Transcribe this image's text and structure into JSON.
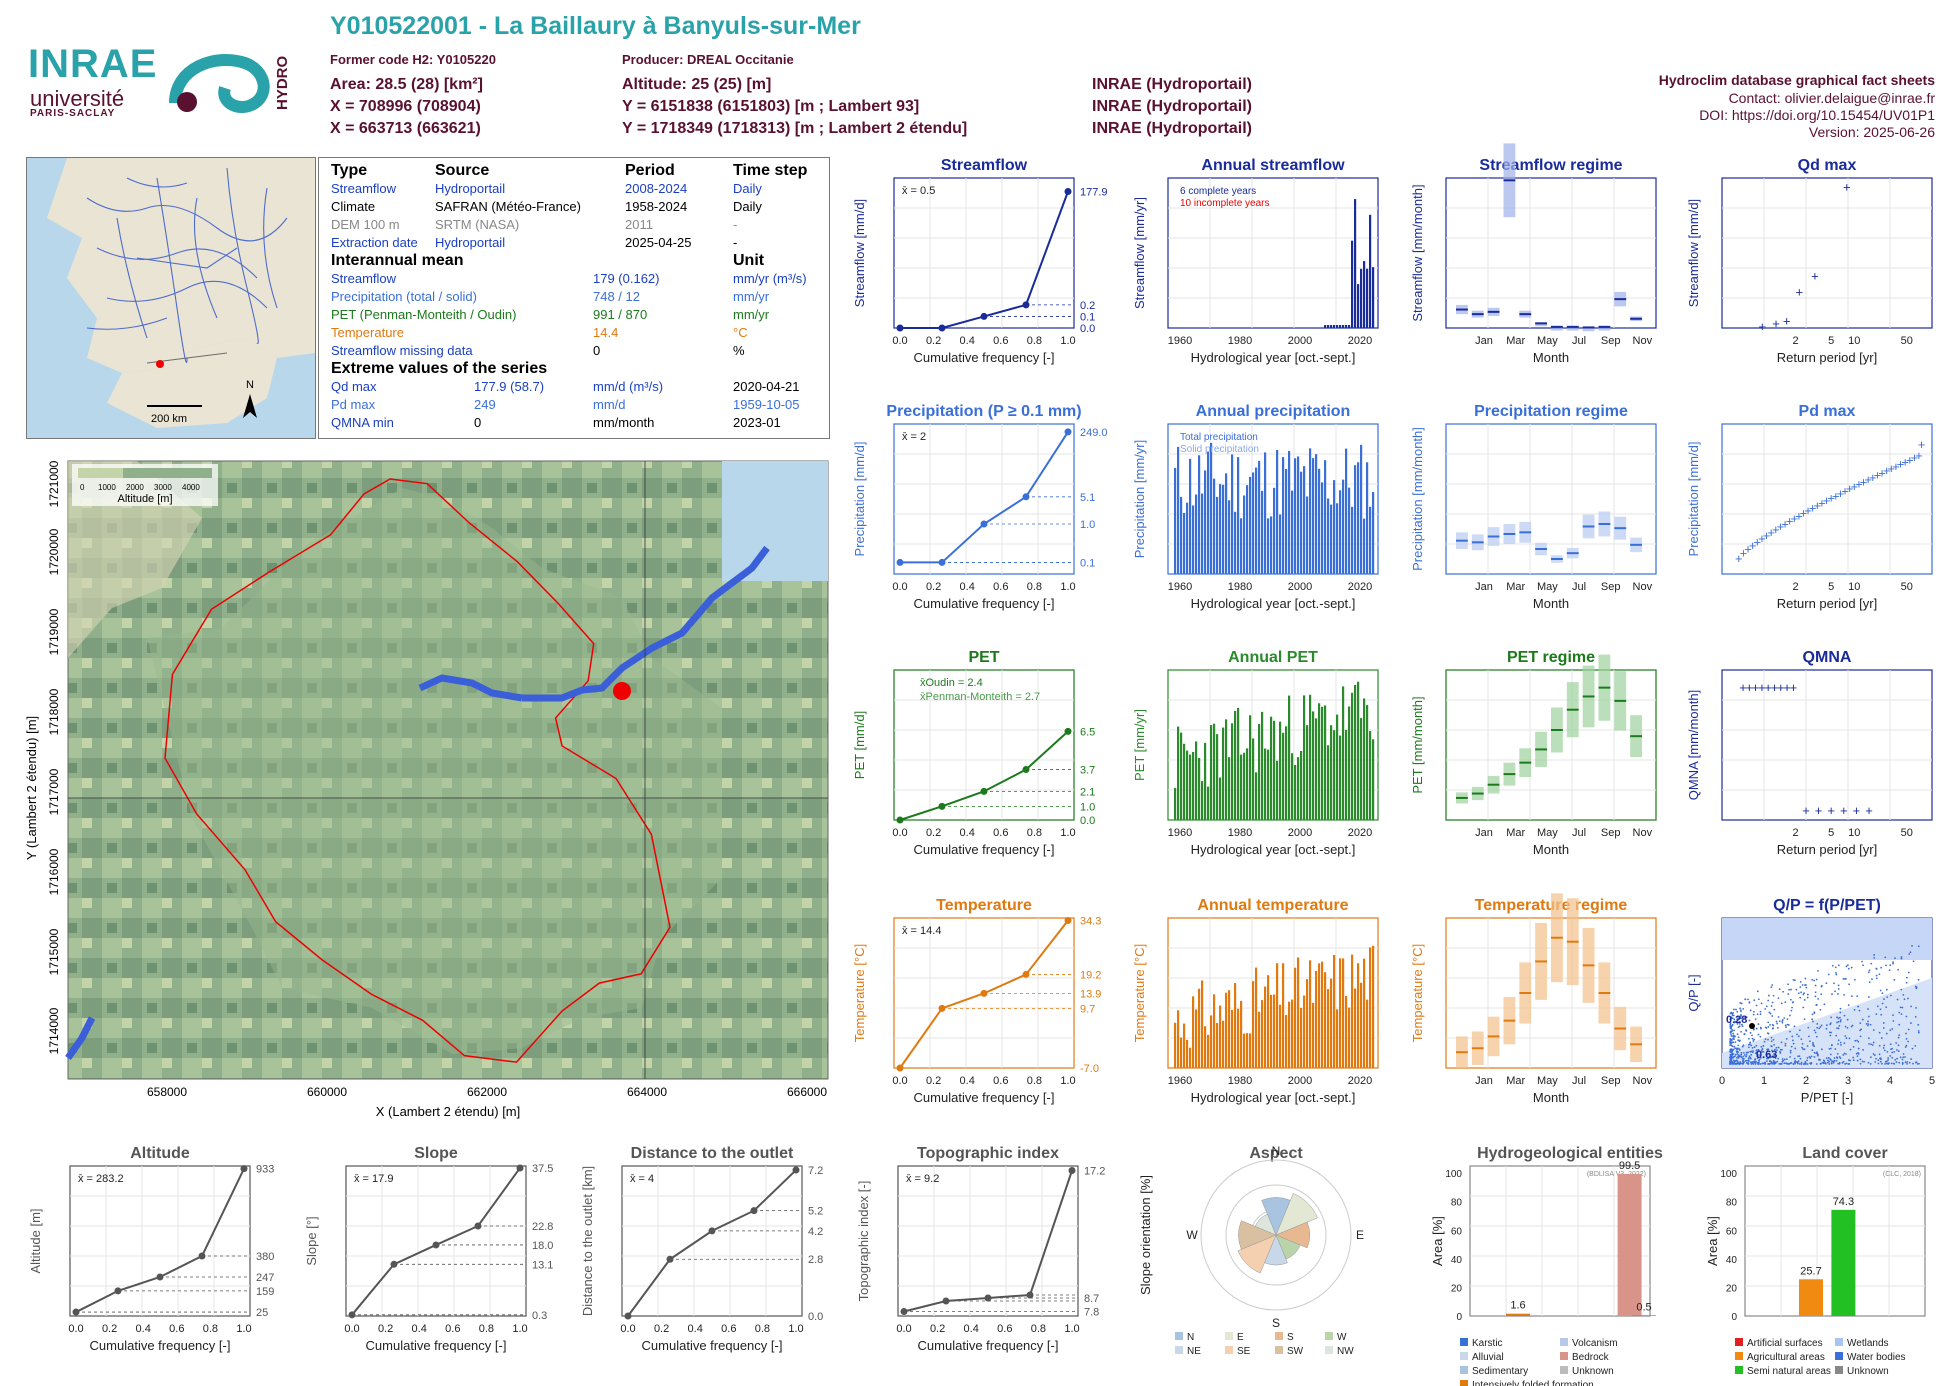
{
  "header": {
    "title": "Y010522001 - La Baillaury à Banyuls-sur-Mer",
    "former_code": "Former code H2: Y0105220",
    "producer": "Producer: DREAL Occitanie",
    "area": "Area: 28.5 (28) [km²]",
    "altitude": "Altitude: 25 (25) [m]",
    "x_l93": "X = 708996 (708904)",
    "y_l93": "Y = 6151838 (6151803) [m ; Lambert 93]",
    "src1": "INRAE (Hydroportail)",
    "x_l2": "X = 663713 (663621)",
    "y_l2": "Y = 1718349 (1718313) [m ; Lambert 2 étendu]",
    "src2": "INRAE (Hydroportail)",
    "src0": "INRAE (Hydroportail)",
    "right": {
      "db": "Hydroclim database graphical fact sheets",
      "contact": "Contact: olivier.delaigue@inrae.fr",
      "doi": "DOI: https://doi.org/10.15454/UV01P1",
      "version": "Version: 2025-06-26"
    }
  },
  "logos": {
    "inrae": "INRAE",
    "univ": "université",
    "ps": "PARIS-SACLAY",
    "hydro": "HYDRO"
  },
  "minimap": {
    "north": "N",
    "scale": "200 km"
  },
  "info": {
    "cols": {
      "type": "Type",
      "source": "Source",
      "period": "Period",
      "timestep": "Time step"
    },
    "rows": [
      {
        "type": "Streamflow",
        "source": "Hydroportail",
        "period": "2008-2024",
        "timestep": "Daily"
      },
      {
        "type": "Climate",
        "source": "SAFRAN (Météo-France)",
        "period": "1958-2024",
        "timestep": "Daily"
      },
      {
        "type": "DEM 100 m",
        "source": "SRTM (NASA)",
        "period": "2011",
        "timestep": "-"
      },
      {
        "type": "Extraction date",
        "source": "Hydroportail",
        "period": "2025-04-25",
        "timestep": "-"
      }
    ],
    "inter_title": "Interannual mean",
    "unit_title": "Unit",
    "inter": [
      {
        "label": "Streamflow",
        "value": "179 (0.162)",
        "unit": "mm/yr (m³/s)"
      },
      {
        "label": "Precipitation (total / solid)",
        "value": "748 / 12",
        "unit": "mm/yr"
      },
      {
        "label": "PET (Penman-Monteith / Oudin)",
        "value": "991 / 870",
        "unit": "mm/yr"
      },
      {
        "label": "Temperature",
        "value": "14.4",
        "unit": "°C"
      },
      {
        "label": "Streamflow missing data",
        "value": "0",
        "unit": "%"
      }
    ],
    "extreme_title": "Extreme values of the series",
    "extreme": [
      {
        "label": "Qd max",
        "value": "177.9 (58.7)",
        "unit": "mm/d (m³/s)",
        "date": "2020-04-21"
      },
      {
        "label": "Pd max",
        "value": "249",
        "unit": "mm/d",
        "date": "1959-10-05"
      },
      {
        "label": "QMNA min",
        "value": "0",
        "unit": "mm/month",
        "date": "2023-01"
      }
    ]
  },
  "bigmap": {
    "legend_title": "Altitude [m]",
    "legend_ticks": [
      "0",
      "1000",
      "2000",
      "3000",
      "4000"
    ],
    "xlabel": "X (Lambert 2 étendu) [m]",
    "ylabel": "Y (Lambert 2 étendu) [m]",
    "xticks": [
      "658000",
      "660000",
      "662000",
      "664000",
      "666000"
    ],
    "yticks": [
      "1714000",
      "1715000",
      "1716000",
      "1717000",
      "1718000",
      "1719000",
      "1720000",
      "1721000"
    ]
  },
  "panels": {
    "streamflow": {
      "title": "Streamflow",
      "ylabel": "Streamflow [mm/d]",
      "xlabel": "Cumulative frequency [-]",
      "mean": "x̄ = 0.5",
      "rvals": [
        "177.9",
        "0.2",
        "0.1",
        "0.0"
      ]
    },
    "ann_streamflow": {
      "title": "Annual streamflow",
      "ylabel": "Streamflow [mm/yr]",
      "xlabel": "Hydrological year [oct.-sept.]",
      "leg1": "6 complete years",
      "leg2": "10 incomplete years"
    },
    "q_regime": {
      "title": "Streamflow regime",
      "ylabel": "Streamflow [mm/month]",
      "xlabel": "Month"
    },
    "qdmax": {
      "title": "Qd max",
      "ylabel": "Streamflow [mm/d]",
      "xlabel": "Return period [yr]"
    },
    "precip": {
      "title": "Precipitation (P ≥ 0.1 mm)",
      "ylabel": "Precipitation [mm/d]",
      "xlabel": "Cumulative frequency [-]",
      "mean": "x̄ = 2",
      "rvals": [
        "249.0",
        "5.1",
        "1.0",
        "0.1"
      ]
    },
    "ann_precip": {
      "title": "Annual precipitation",
      "ylabel": "Precipitation [mm/yr]",
      "xlabel": "Hydrological year [oct.-sept.]",
      "leg1": "Total precipitation",
      "leg2": "Solid precipitation"
    },
    "p_regime": {
      "title": "Precipitation regime",
      "ylabel": "Precipitation [mm/month]",
      "xlabel": "Month"
    },
    "pdmax": {
      "title": "Pd max",
      "ylabel": "Precipitation [mm/d]",
      "xlabel": "Return period [yr]"
    },
    "pet": {
      "title": "PET",
      "ylabel": "PET [mm/d]",
      "xlabel": "Cumulative frequency [-]",
      "leg1": "x̄Oudin = 2.4",
      "leg2": "x̄Penman-Monteith = 2.7",
      "rvals": [
        "6.5",
        "3.7",
        "2.1",
        "1.0",
        "0.0"
      ]
    },
    "ann_pet": {
      "title": "Annual PET",
      "ylabel": "PET [mm/yr]",
      "xlabel": "Hydrological year [oct.-sept.]"
    },
    "pet_regime": {
      "title": "PET regime",
      "ylabel": "PET [mm/month]",
      "xlabel": "Month"
    },
    "qmna": {
      "title": "QMNA",
      "ylabel": "QMNA [mm/month]",
      "xlabel": "Return period [yr]"
    },
    "temp": {
      "title": "Temperature",
      "ylabel": "Temperature [°C]",
      "xlabel": "Cumulative frequency [-]",
      "mean": "x̄ = 14.4",
      "rvals": [
        "34.3",
        "19.2",
        "13.9",
        "9.7",
        "-7.0"
      ]
    },
    "ann_temp": {
      "title": "Annual temperature",
      "ylabel": "Temperature [°C]",
      "xlabel": "Hydrological year [oct.-sept.]"
    },
    "t_regime": {
      "title": "Temperature regime",
      "ylabel": "Temperature [°C]",
      "xlabel": "Month"
    },
    "qp": {
      "title": "Q/P = f(P/PET)",
      "ylabel": "Q/P [-]",
      "xlabel": "P/PET [-]",
      "v1": "0.28",
      "v2": "0.63"
    },
    "altitude": {
      "title": "Altitude",
      "ylabel": "Altitude [m]",
      "xlabel": "Cumulative frequency [-]",
      "mean": "x̄ = 283.2",
      "rvals": [
        "933",
        "380",
        "247",
        "159",
        "25"
      ]
    },
    "slope": {
      "title": "Slope",
      "ylabel": "Slope [°]",
      "xlabel": "Cumulative frequency [-]",
      "mean": "x̄ = 17.9",
      "rvals": [
        "37.5",
        "22.8",
        "18.0",
        "13.1",
        "0.3"
      ]
    },
    "distance": {
      "title": "Distance to the outlet",
      "ylabel": "Distance to the outlet [km]",
      "xlabel": "Cumulative frequency [-]",
      "mean": "x̄ = 4",
      "rvals": [
        "7.2",
        "5.2",
        "4.2",
        "2.8",
        "0.0"
      ]
    },
    "topo": {
      "title": "Topographic index",
      "ylabel": "Topographic index [-]",
      "xlabel": "Cumulative frequency [-]",
      "mean": "x̄ = 9.2",
      "rvals": [
        "17.2",
        "8.7",
        "7.8"
      ]
    },
    "aspect": {
      "title": "Aspect",
      "ylabel": "Slope orientation [%]",
      "legend": [
        "N",
        "E",
        "S",
        "W",
        "NE",
        "SE",
        "SW",
        "NW"
      ]
    },
    "hydrogeo": {
      "title": "Hydrogeological entities",
      "ylabel": "Area [%]",
      "src": "(BDLISA V3, 2022)",
      "v1": "1.6",
      "v2": "99.5",
      "v3": "0.5",
      "legend": [
        "Karstic",
        "Volcanism",
        "Alluvial",
        "Bedrock",
        "Sedimentary",
        "Unknown",
        "Intensively folded formation"
      ]
    },
    "landcover": {
      "title": "Land cover",
      "ylabel": "Area [%]",
      "src": "(CLC, 2018)",
      "v1": "25.7",
      "v2": "74.3",
      "legend": [
        "Artificial surfaces",
        "Wetlands",
        "Agricultural areas",
        "Water bodies",
        "Semi natural areas",
        "Unknown"
      ]
    }
  },
  "chart_data": [
    {
      "type": "line",
      "title": "Streamflow",
      "x": [
        0,
        0.25,
        0.5,
        0.75,
        1.0
      ],
      "y": [
        0.0,
        0.0,
        0.1,
        0.2,
        177.9
      ],
      "xlim": [
        0,
        1
      ]
    },
    {
      "type": "line",
      "title": "Precipitation (P ≥ 0.1 mm)",
      "x": [
        0,
        0.25,
        0.5,
        0.75,
        1.0
      ],
      "y": [
        0.1,
        0.1,
        1.0,
        5.1,
        249.0
      ],
      "xlim": [
        0,
        1
      ]
    },
    {
      "type": "line",
      "title": "PET",
      "x": [
        0,
        0.25,
        0.5,
        0.75,
        1.0
      ],
      "y": [
        0.0,
        1.0,
        2.1,
        3.7,
        6.5
      ],
      "xlim": [
        0,
        1
      ],
      "ylim": [
        0,
        11
      ]
    },
    {
      "type": "line",
      "title": "Temperature",
      "x": [
        0,
        0.25,
        0.5,
        0.75,
        1.0
      ],
      "y": [
        -7.0,
        9.7,
        13.9,
        19.2,
        34.3
      ],
      "xlim": [
        0,
        1
      ],
      "ylim": [
        -7,
        35
      ]
    },
    {
      "type": "line",
      "title": "Altitude",
      "x": [
        0,
        0.25,
        0.5,
        0.75,
        1.0
      ],
      "y": [
        25,
        159,
        247,
        380,
        933
      ],
      "ylim": [
        0,
        950
      ]
    },
    {
      "type": "line",
      "title": "Slope",
      "x": [
        0,
        0.25,
        0.5,
        0.75,
        1.0
      ],
      "y": [
        0.3,
        13.1,
        18.0,
        22.8,
        37.5
      ],
      "ylim": [
        0,
        38
      ]
    },
    {
      "type": "line",
      "title": "Distance to the outlet",
      "x": [
        0,
        0.25,
        0.5,
        0.75,
        1.0
      ],
      "y": [
        0.0,
        2.8,
        4.2,
        5.2,
        7.2
      ],
      "ylim": [
        0,
        7.4
      ]
    },
    {
      "type": "line",
      "title": "Topographic index",
      "x": [
        0,
        0.25,
        0.5,
        0.75,
        1.0
      ],
      "y": [
        7.8,
        8.5,
        8.7,
        8.9,
        17.2
      ],
      "ylim": [
        7.5,
        17.5
      ]
    },
    {
      "type": "bar",
      "title": "Streamflow regime",
      "categories": [
        "Oct",
        "Nov",
        "Dec",
        "Jan",
        "Feb",
        "Mar",
        "Apr",
        "May",
        "Jun",
        "Jul",
        "Aug",
        "Sep"
      ],
      "values": [
        16,
        12,
        14,
        128,
        12,
        4,
        1,
        1,
        0.5,
        1,
        25,
        8
      ],
      "ylim": [
        0,
        130
      ]
    },
    {
      "type": "bar",
      "title": "Precipitation regime",
      "categories": [
        "Oct",
        "Nov",
        "Dec",
        "Jan",
        "Feb",
        "Mar",
        "Apr",
        "May",
        "Jun",
        "Jul",
        "Aug",
        "Sep"
      ],
      "values": [
        40,
        38,
        45,
        48,
        50,
        30,
        18,
        25,
        57,
        60,
        55,
        35
      ],
      "ylim": [
        0,
        180
      ]
    },
    {
      "type": "bar",
      "title": "PET regime",
      "categories": [
        "Oct",
        "Nov",
        "Dec",
        "Jan",
        "Feb",
        "Mar",
        "Apr",
        "May",
        "Jun",
        "Jul",
        "Aug",
        "Sep"
      ],
      "values": [
        25,
        30,
        40,
        52,
        65,
        80,
        102,
        125,
        140,
        150,
        135,
        95
      ],
      "ylim": [
        0,
        170
      ]
    },
    {
      "type": "bar",
      "title": "Temperature regime",
      "categories": [
        "Oct",
        "Nov",
        "Dec",
        "Jan",
        "Feb",
        "Mar",
        "Apr",
        "May",
        "Jun",
        "Jul",
        "Aug",
        "Sep"
      ],
      "values": [
        8,
        8.5,
        10,
        12,
        15.5,
        19.5,
        22.5,
        22,
        19,
        15.5,
        11,
        9
      ],
      "ylim": [
        6,
        25
      ]
    },
    {
      "type": "scatter",
      "title": "Qd max",
      "x": [
        1.2,
        1.6,
        2.0,
        2.6,
        3.6,
        7.0
      ],
      "y": [
        1,
        5,
        8,
        45,
        65,
        178
      ],
      "xlabel": "Return period [yr]"
    },
    {
      "type": "bar",
      "title": "Land cover",
      "categories": [
        "Agricultural areas",
        "Semi natural areas"
      ],
      "values": [
        25.7,
        74.3
      ],
      "ylim": [
        0,
        100
      ]
    },
    {
      "type": "bar",
      "title": "Hydrogeological entities",
      "categories": [
        "Karstic",
        "Bedrock",
        "Intensively folded formation"
      ],
      "values": [
        1.6,
        99.5,
        0.5
      ],
      "ylim": [
        0,
        100
      ]
    }
  ]
}
